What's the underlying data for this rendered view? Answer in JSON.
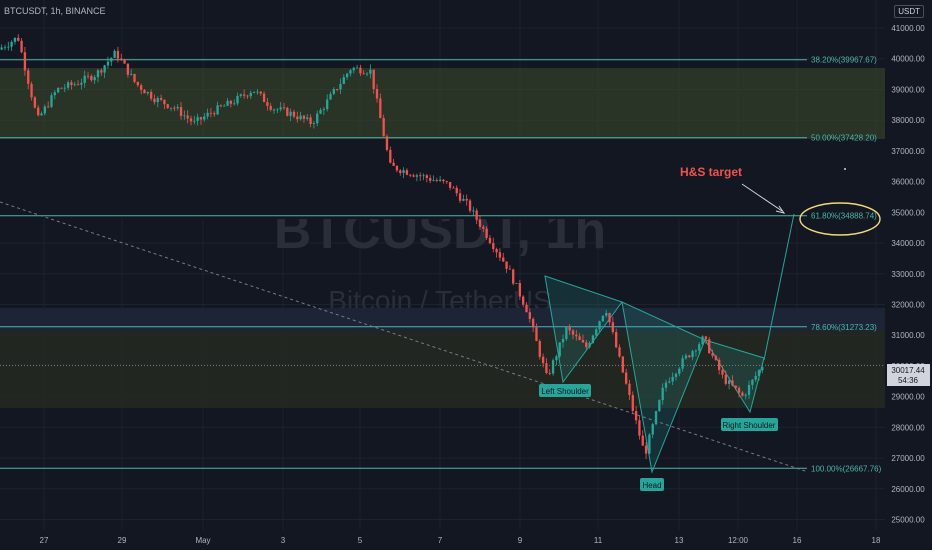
{
  "header": {
    "symbol_line": "BTCUSDT, 1h, BINANCE"
  },
  "currency_badge": "USDT",
  "watermark": {
    "symbol": "BTCUSDT, 1h",
    "name": "Bitcoin / TetherUS"
  },
  "colors": {
    "background": "#131722",
    "grid": "#1f2431",
    "up": "#26a69a",
    "down": "#ef5350",
    "fib_line": "#4db6ac",
    "pattern_fill": "#26a69a",
    "target_text": "#ef5350",
    "price_label_bg": "#d1d4dc",
    "axis_text": "#b2b5be"
  },
  "chart_data": {
    "type": "candlestick",
    "x_ticks": [
      "27",
      "29",
      "May",
      "3",
      "5",
      "7",
      "9",
      "11",
      "13",
      "12:00",
      "16",
      "18"
    ],
    "y_ticks": [
      "41000.00",
      "40000.00",
      "39000.00",
      "38000.00",
      "37000.00",
      "36000.00",
      "35000.00",
      "34000.00",
      "33000.00",
      "32000.00",
      "31000.00",
      "30000.00",
      "29000.00",
      "28000.00",
      "27000.00",
      "26000.00",
      "25000.00"
    ],
    "ylim": [
      25000,
      41500
    ],
    "fib_levels": [
      {
        "label": "38.20%(39967.67)",
        "value": 39967.67
      },
      {
        "label": "50.00%(37428.20)",
        "value": 37428.2
      },
      {
        "label": "61.80%(34888.74)",
        "value": 34888.74
      },
      {
        "label": "78.60%(31273.23)",
        "value": 31273.23
      },
      {
        "label": "100.00%(26667.76)",
        "value": 26667.76
      }
    ],
    "current_price": {
      "price": "30017.44",
      "countdown": "54:36",
      "value": 30017.44
    },
    "price_path": [
      [
        "26",
        40300
      ],
      [
        "26.5",
        40700
      ],
      [
        "27",
        38000
      ],
      [
        "27.5",
        39000
      ],
      [
        "28",
        39200
      ],
      [
        "28.5",
        39500
      ],
      [
        "29",
        40200
      ],
      [
        "29.5",
        39200
      ],
      [
        "30",
        38700
      ],
      [
        "30.5",
        38400
      ],
      [
        "May 1",
        37900
      ],
      [
        "1.5",
        38300
      ],
      [
        "2",
        38600
      ],
      [
        "2.5",
        39000
      ],
      [
        "3",
        38400
      ],
      [
        "3.5",
        38200
      ],
      [
        "4",
        37900
      ],
      [
        "4.5",
        38800
      ],
      [
        "5",
        39700
      ],
      [
        "5.5",
        39600
      ],
      [
        "6",
        36500
      ],
      [
        "6.5",
        36300
      ],
      [
        "7",
        36100
      ],
      [
        "7.5",
        35900
      ],
      [
        "8",
        35200
      ],
      [
        "8.5",
        34200
      ],
      [
        "9",
        33200
      ],
      [
        "9.5",
        31800
      ],
      [
        "10",
        29600
      ],
      [
        "10.5",
        31200
      ],
      [
        "11",
        30600
      ],
      [
        "11.5",
        31900
      ],
      [
        "12",
        29500
      ],
      [
        "12.5",
        27100
      ],
      [
        "13",
        29400
      ],
      [
        "13.5",
        30200
      ],
      [
        "14",
        30900
      ],
      [
        "14.5",
        29600
      ],
      [
        "15",
        29000
      ],
      [
        "15.2",
        30017.44
      ]
    ],
    "pattern": {
      "name": "Inverse Head and Shoulders",
      "labels": [
        "Left Shoulder",
        "Head",
        "Right Shoulder"
      ],
      "target_label": "H&S target",
      "target_value": 34888.74
    }
  }
}
